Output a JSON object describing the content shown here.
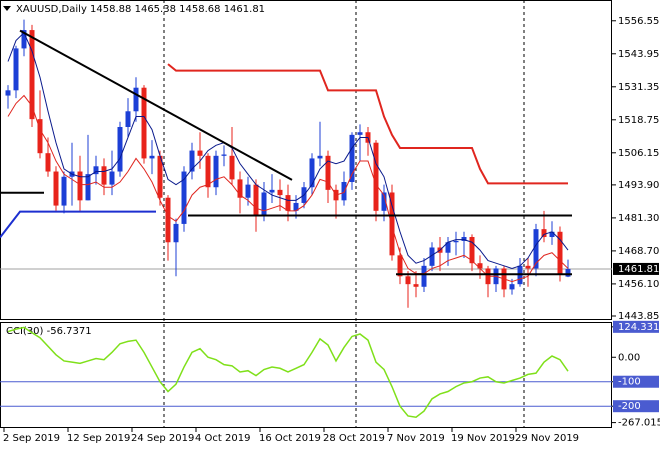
{
  "chart_data": {
    "type": "candlestick",
    "title": "XAUUSD,Daily",
    "categories": [
      "2 Sep 2019",
      null,
      null,
      null,
      null,
      null,
      null,
      null,
      "12 Sep 2019",
      null,
      null,
      null,
      null,
      null,
      null,
      null,
      "24 Sep 2019",
      null,
      null,
      null,
      null,
      null,
      null,
      null,
      "4 Oct 2019",
      null,
      null,
      null,
      null,
      null,
      null,
      null,
      "16 Oct 2019",
      null,
      null,
      null,
      null,
      null,
      null,
      null,
      "28 Oct 2019",
      null,
      null,
      null,
      null,
      null,
      null,
      null,
      "7 Nov 2019",
      null,
      null,
      null,
      null,
      null,
      null,
      null,
      "19 Nov 2019",
      null,
      null,
      null,
      null,
      null,
      null,
      null,
      "29 Nov 2019",
      null,
      null,
      null,
      null,
      null,
      null
    ],
    "open": [
      1528,
      1530,
      1546,
      1553,
      1519,
      1506,
      1499,
      1486,
      1497,
      1499,
      1488,
      1498,
      1501,
      1494,
      1499,
      1516,
      1522,
      1531,
      1504,
      1505,
      1489,
      1472,
      1479,
      1499,
      1507,
      1505,
      1493,
      1505,
      1505,
      1496,
      1489,
      1494,
      1482,
      1491,
      1492,
      1490,
      1484,
      1487,
      1493,
      1504,
      1505,
      1492,
      1488,
      1495,
      1513,
      1514,
      1510,
      1484,
      1491,
      1467,
      1459,
      1456,
      1455,
      1463,
      1470,
      1468,
      1472,
      1472.5,
      1474,
      1464,
      1462,
      1456,
      1462,
      1454,
      1456,
      1463,
      1462,
      1477,
      1474,
      1476,
      1458.88
    ],
    "high": [
      1532,
      1547,
      1557,
      1555,
      1530,
      1512,
      1501,
      1499,
      1510,
      1505,
      1513,
      1505,
      1504,
      1507,
      1518,
      1527,
      1535,
      1532,
      1511,
      1507,
      1490,
      1481,
      1501,
      1510,
      1514,
      1506,
      1507,
      1509,
      1516,
      1499,
      1497,
      1496,
      1495,
      1498,
      1496,
      1494,
      1490,
      1495,
      1506,
      1518,
      1507,
      1494,
      1499,
      1514,
      1517,
      1516,
      1511,
      1494,
      1494,
      1470,
      1461,
      1461,
      1466,
      1472,
      1474,
      1474,
      1476,
      1476,
      1475,
      1467,
      1463,
      1463,
      1463,
      1458,
      1466,
      1466,
      1479,
      1484,
      1480,
      1478,
      1465.38
    ],
    "low": [
      1523,
      1527,
      1543,
      1516,
      1504,
      1497,
      1484,
      1483,
      1486,
      1484,
      1488,
      1494,
      1490,
      1490,
      1497,
      1512,
      1518,
      1502,
      1498,
      1486,
      1465,
      1459,
      1476,
      1496,
      1500,
      1489,
      1490,
      1501,
      1494,
      1483,
      1486,
      1476,
      1480,
      1487,
      1484,
      1480,
      1481,
      1485,
      1490,
      1501,
      1487,
      1481,
      1486,
      1492,
      1503,
      1505,
      1480,
      1480,
      1465,
      1456,
      1447,
      1451,
      1453,
      1461,
      1461,
      1463,
      1467,
      1466,
      1461,
      1458,
      1451,
      1453,
      1451,
      1452,
      1455,
      1455,
      1459,
      1472,
      1471,
      1457,
      1458.68
    ],
    "close": [
      1530,
      1546,
      1553,
      1519,
      1506,
      1499,
      1486,
      1497,
      1499,
      1488,
      1498,
      1501,
      1494,
      1499,
      1516,
      1522,
      1531,
      1504,
      1505,
      1489,
      1472,
      1479,
      1499,
      1507,
      1505,
      1493,
      1505,
      1505.5,
      1496,
      1489,
      1494,
      1482,
      1491,
      1492,
      1490,
      1484,
      1487,
      1493,
      1504,
      1505,
      1492,
      1488,
      1495,
      1513,
      1514,
      1510,
      1484,
      1491,
      1467,
      1459,
      1456,
      1455,
      1463,
      1470,
      1468,
      1472,
      1472.5,
      1474,
      1464,
      1462,
      1456,
      1462,
      1454,
      1456,
      1463,
      1462,
      1477,
      1474,
      1476,
      1460,
      1461.81
    ],
    "up_color": "#1c3fd6",
    "down_color": "#e8231b",
    "ylim": [
      1442.7,
      1564.1
    ],
    "yticks": [
      1556.55,
      1543.95,
      1531.35,
      1518.75,
      1506.15,
      {
        "value": 1493.9,
        "label": "1493.90"
      },
      {
        "value": 1481.3,
        "label": "1481.30"
      },
      {
        "value": 1468.7,
        "label": "1468.70"
      },
      {
        "value": 1456.1,
        "label": "1456.10"
      },
      1443.85
    ],
    "lines": [
      {
        "color": "#0a1a8c",
        "width": 1,
        "values": [
          1541,
          1549,
          1552,
          1545,
          1535,
          1522,
          1510,
          1500,
          1498,
          1497,
          1497,
          1499,
          1499,
          1500,
          1504,
          1512,
          1520,
          1520,
          1515,
          1505,
          1496,
          1494,
          1496,
          1500,
          1503,
          1507,
          1509,
          1510,
          1508,
          1502,
          1498,
          1494,
          1492,
          1490,
          1489,
          1488,
          1488,
          1490,
          1494,
          1500,
          1503,
          1502,
          1503,
          1508,
          1512,
          1512,
          1502,
          1497,
          1486,
          1476,
          1467,
          1464,
          1465,
          1467,
          1469,
          1472,
          1473,
          1473,
          1472,
          1469,
          1465,
          1464,
          1463,
          1462,
          1463,
          1466,
          1471,
          1475,
          1476,
          1473,
          1469
        ]
      },
      {
        "color": "#e0261f",
        "width": 1,
        "values": [
          1520,
          1525,
          1528,
          1524,
          1515,
          1510,
          1503,
          1498,
          1496,
          1494,
          1494,
          1495,
          1493,
          1493,
          1495,
          1499,
          1504,
          1500,
          1495,
          1488,
          1482,
          1480,
          1484,
          1490,
          1493,
          1494,
          1496,
          1497,
          1494,
          1490,
          1488,
          1485,
          1484,
          1485,
          1486,
          1484,
          1484,
          1486,
          1490,
          1496,
          1495,
          1490,
          1491,
          1498,
          1503,
          1503,
          1494,
          1490,
          1478,
          1468,
          1462,
          1460,
          1460,
          1462,
          1463,
          1465,
          1466,
          1467,
          1465,
          1462,
          1459,
          1459,
          1458,
          1457,
          1458,
          1459,
          1464,
          1467,
          1468,
          1465,
          1462
        ]
      },
      {
        "color": "#e0261f",
        "width": 2,
        "values": [
          null,
          null,
          null,
          null,
          null,
          null,
          null,
          null,
          null,
          null,
          null,
          null,
          null,
          null,
          null,
          null,
          null,
          null,
          null,
          null,
          1540,
          1537.5,
          1537.5,
          1537.5,
          1537.5,
          1537.5,
          1537.5,
          1537.5,
          1537.5,
          1537.5,
          1537.5,
          1537.5,
          1537.5,
          1537.5,
          1537.5,
          1537.5,
          1537.5,
          1537.5,
          1537.5,
          1537.5,
          1530,
          1530,
          1530,
          1530,
          1530,
          1530,
          1530,
          1520,
          1513,
          1508,
          1508,
          1508,
          1508,
          1508,
          1508,
          1508,
          1508,
          1508,
          1508,
          1500,
          1494.5,
          1494.5,
          1494.5,
          1494.5,
          1494.5,
          1494.5,
          1494.5,
          1494.5,
          1494.5,
          1494.5,
          1494.5
        ]
      }
    ],
    "trendlines": [
      {
        "color": "#000000",
        "x": [
          1.5,
          35.5
        ],
        "y": [
          1552.8,
          1495.8
        ]
      },
      {
        "color": "#000000",
        "x": [
          -1,
          4.5
        ],
        "y": [
          1490.9,
          1490.9
        ]
      },
      {
        "color": "#1c2fd0",
        "x": [
          -1,
          1.5,
          18.5
        ],
        "y": [
          1473.8,
          1483.7,
          1483.7
        ]
      },
      {
        "color": "#000000",
        "x": [
          22.5,
          70.5
        ],
        "y": [
          1482.2,
          1482.2
        ]
      },
      {
        "color": "#000000",
        "x": [
          48.5,
          70.5
        ],
        "y": [
          1459.8,
          1459.8
        ]
      }
    ],
    "cci": {
      "name": "CCI(30)",
      "color": "#7fe01a",
      "values": [
        105,
        115,
        122,
        100,
        80,
        45,
        10,
        -15,
        -20,
        -25,
        -15,
        -5,
        -10,
        20,
        55,
        65,
        70,
        20,
        -40,
        -100,
        -140,
        -110,
        -40,
        20,
        35,
        0,
        -10,
        -30,
        -35,
        -60,
        -55,
        -75,
        -50,
        -40,
        -45,
        -60,
        -45,
        -30,
        20,
        75,
        50,
        -15,
        40,
        85,
        95,
        70,
        -20,
        -50,
        -120,
        -200,
        -240,
        -245,
        -220,
        -170,
        -150,
        -140,
        -120,
        -105,
        -100,
        -85,
        -80,
        -100,
        -105,
        -95,
        -85,
        -70,
        -65,
        -20,
        5,
        -10,
        -56.7371
      ],
      "ylim": [
        -285,
        140
      ],
      "yticks": [
        124.3314,
        {
          "value": 0,
          "label": "0.00"
        },
        -100,
        -200,
        -267.0159
      ],
      "levels": [
        -100,
        -200
      ],
      "level_color": "#4a5bd0"
    }
  }
}
